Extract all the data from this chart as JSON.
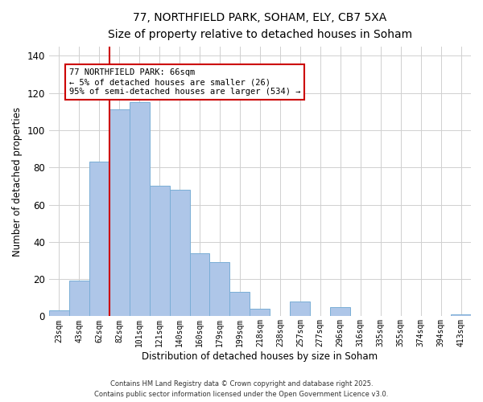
{
  "title": "77, NORTHFIELD PARK, SOHAM, ELY, CB7 5XA",
  "subtitle": "Size of property relative to detached houses in Soham",
  "xlabel": "Distribution of detached houses by size in Soham",
  "ylabel": "Number of detached properties",
  "bar_color": "#aec6e8",
  "bar_edge_color": "#7aaed6",
  "categories": [
    "23sqm",
    "43sqm",
    "62sqm",
    "82sqm",
    "101sqm",
    "121sqm",
    "140sqm",
    "160sqm",
    "179sqm",
    "199sqm",
    "218sqm",
    "238sqm",
    "257sqm",
    "277sqm",
    "296sqm",
    "316sqm",
    "335sqm",
    "355sqm",
    "374sqm",
    "394sqm",
    "413sqm"
  ],
  "values": [
    3,
    19,
    83,
    111,
    115,
    70,
    68,
    34,
    29,
    13,
    4,
    0,
    8,
    0,
    5,
    0,
    0,
    0,
    0,
    0,
    1
  ],
  "ylim": [
    0,
    145
  ],
  "yticks": [
    0,
    20,
    40,
    60,
    80,
    100,
    120,
    140
  ],
  "vline_color": "#cc0000",
  "vline_x_index": 2.0,
  "annotation_title": "77 NORTHFIELD PARK: 66sqm",
  "annotation_line1": "← 5% of detached houses are smaller (26)",
  "annotation_line2": "95% of semi-detached houses are larger (534) →",
  "annotation_box_color": "#ffffff",
  "annotation_box_edge": "#cc0000",
  "footer1": "Contains HM Land Registry data © Crown copyright and database right 2025.",
  "footer2": "Contains public sector information licensed under the Open Government Licence v3.0.",
  "background_color": "#ffffff",
  "grid_color": "#d0d0d0"
}
